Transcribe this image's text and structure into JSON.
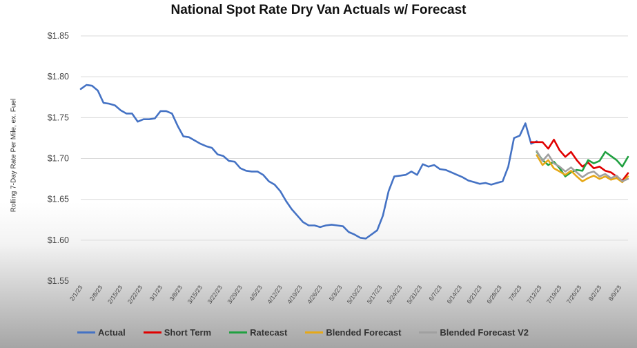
{
  "chart_data": {
    "type": "line",
    "title": "National Spot Rate Dry Van Actuals w/ Forecast",
    "ylabel": "Rolling 7-Day Rate Per Mile, ex. Fuel",
    "xlabel": "",
    "ylim": [
      1.55,
      1.85
    ],
    "xlim": [
      "2/1/23",
      "8/12/23"
    ],
    "y_ticks": [
      "$1.55",
      "$1.60",
      "$1.65",
      "$1.70",
      "$1.75",
      "$1.80",
      "$1.85"
    ],
    "x_ticks": [
      "2/1/23",
      "2/8/23",
      "2/15/23",
      "2/22/23",
      "3/1/23",
      "3/8/23",
      "3/15/23",
      "3/22/23",
      "3/29/23",
      "4/5/23",
      "4/12/23",
      "4/19/23",
      "4/26/23",
      "5/3/23",
      "5/10/23",
      "5/17/23",
      "5/24/23",
      "5/31/23",
      "6/7/23",
      "6/14/23",
      "6/21/23",
      "6/28/23",
      "7/5/23",
      "7/12/23",
      "7/19/23",
      "7/26/23",
      "8/2/23",
      "8/9/23"
    ],
    "grid": true,
    "legend_position": "bottom",
    "series": [
      {
        "name": "Actual",
        "color": "#4472c4",
        "x": [
          "2/1/23",
          "2/3/23",
          "2/5/23",
          "2/7/23",
          "2/9/23",
          "2/11/23",
          "2/13/23",
          "2/15/23",
          "2/17/23",
          "2/19/23",
          "2/21/23",
          "2/23/23",
          "2/25/23",
          "2/27/23",
          "3/1/23",
          "3/3/23",
          "3/5/23",
          "3/7/23",
          "3/9/23",
          "3/11/23",
          "3/13/23",
          "3/15/23",
          "3/17/23",
          "3/19/23",
          "3/21/23",
          "3/23/23",
          "3/25/23",
          "3/27/23",
          "3/29/23",
          "3/31/23",
          "4/2/23",
          "4/4/23",
          "4/6/23",
          "4/8/23",
          "4/10/23",
          "4/12/23",
          "4/14/23",
          "4/16/23",
          "4/18/23",
          "4/20/23",
          "4/22/23",
          "4/24/23",
          "4/26/23",
          "4/28/23",
          "4/30/23",
          "5/2/23",
          "5/4/23",
          "5/6/23",
          "5/8/23",
          "5/10/23",
          "5/12/23",
          "5/14/23",
          "5/16/23",
          "5/18/23",
          "5/20/23",
          "5/22/23",
          "5/24/23",
          "5/26/23",
          "5/28/23",
          "5/30/23",
          "6/1/23",
          "6/3/23",
          "6/5/23",
          "6/7/23",
          "6/9/23",
          "6/11/23",
          "6/13/23",
          "6/15/23",
          "6/17/23",
          "6/19/23",
          "6/21/23",
          "6/23/23",
          "6/25/23",
          "6/27/23",
          "6/29/23",
          "7/1/23",
          "7/3/23",
          "7/5/23",
          "7/7/23",
          "7/9/23",
          "7/11/23"
        ],
        "values": [
          1.785,
          1.79,
          1.789,
          1.783,
          1.768,
          1.767,
          1.765,
          1.759,
          1.755,
          1.755,
          1.745,
          1.748,
          1.748,
          1.749,
          1.758,
          1.758,
          1.755,
          1.74,
          1.727,
          1.726,
          1.722,
          1.718,
          1.715,
          1.713,
          1.705,
          1.703,
          1.697,
          1.696,
          1.688,
          1.685,
          1.684,
          1.684,
          1.68,
          1.672,
          1.668,
          1.66,
          1.648,
          1.638,
          1.63,
          1.622,
          1.618,
          1.618,
          1.616,
          1.618,
          1.619,
          1.618,
          1.617,
          1.61,
          1.607,
          1.603,
          1.602,
          1.607,
          1.612,
          1.63,
          1.66,
          1.678,
          1.679,
          1.68,
          1.684,
          1.68,
          1.693,
          1.69,
          1.692,
          1.687,
          1.686,
          1.683,
          1.68,
          1.677,
          1.673,
          1.671,
          1.669,
          1.67,
          1.668,
          1.67,
          1.672,
          1.69,
          1.725,
          1.728,
          1.743,
          1.718,
          1.721
        ]
      },
      {
        "name": "Short Term",
        "color": "#e00000",
        "x": [
          "7/9/23",
          "7/11/23",
          "7/13/23",
          "7/15/23",
          "7/17/23",
          "7/19/23",
          "7/21/23",
          "7/23/23",
          "7/25/23",
          "7/27/23",
          "7/29/23",
          "7/31/23",
          "8/2/23",
          "8/4/23",
          "8/6/23",
          "8/8/23",
          "8/10/23",
          "8/12/23"
        ],
        "values": [
          1.72,
          1.72,
          1.72,
          1.712,
          1.723,
          1.71,
          1.702,
          1.708,
          1.698,
          1.69,
          1.695,
          1.688,
          1.69,
          1.685,
          1.683,
          1.678,
          1.673,
          1.682
        ]
      },
      {
        "name": "Ratecast",
        "color": "#20a040",
        "x": [
          "7/11/23",
          "7/13/23",
          "7/15/23",
          "7/17/23",
          "7/19/23",
          "7/21/23",
          "7/23/23",
          "7/25/23",
          "7/27/23",
          "7/29/23",
          "7/31/23",
          "8/2/23",
          "8/4/23",
          "8/6/23",
          "8/8/23",
          "8/10/23",
          "8/12/23"
        ],
        "values": [
          1.708,
          1.698,
          1.692,
          1.696,
          1.688,
          1.678,
          1.683,
          1.686,
          1.685,
          1.698,
          1.694,
          1.697,
          1.708,
          1.703,
          1.698,
          1.69,
          1.702
        ]
      },
      {
        "name": "Blended Forecast",
        "color": "#e6a817",
        "x": [
          "7/11/23",
          "7/13/23",
          "7/15/23",
          "7/17/23",
          "7/19/23",
          "7/21/23",
          "7/23/23",
          "7/25/23",
          "7/27/23",
          "7/29/23",
          "7/31/23",
          "8/2/23",
          "8/4/23",
          "8/6/23",
          "8/8/23",
          "8/10/23",
          "8/12/23"
        ],
        "values": [
          1.704,
          1.692,
          1.698,
          1.688,
          1.684,
          1.68,
          1.685,
          1.678,
          1.672,
          1.676,
          1.679,
          1.675,
          1.678,
          1.674,
          1.676,
          1.671,
          1.678
        ]
      },
      {
        "name": "Blended Forecast V2",
        "color": "#a0a0a0",
        "x": [
          "7/11/23",
          "7/13/23",
          "7/15/23",
          "7/17/23",
          "7/19/23",
          "7/21/23",
          "7/23/23",
          "7/25/23",
          "7/27/23",
          "7/29/23",
          "7/31/23",
          "8/2/23",
          "8/4/23",
          "8/6/23",
          "8/8/23",
          "8/10/23",
          "8/12/23"
        ],
        "values": [
          1.709,
          1.697,
          1.705,
          1.694,
          1.69,
          1.684,
          1.689,
          1.683,
          1.677,
          1.682,
          1.684,
          1.678,
          1.681,
          1.676,
          1.679,
          1.672,
          1.675
        ]
      }
    ]
  }
}
